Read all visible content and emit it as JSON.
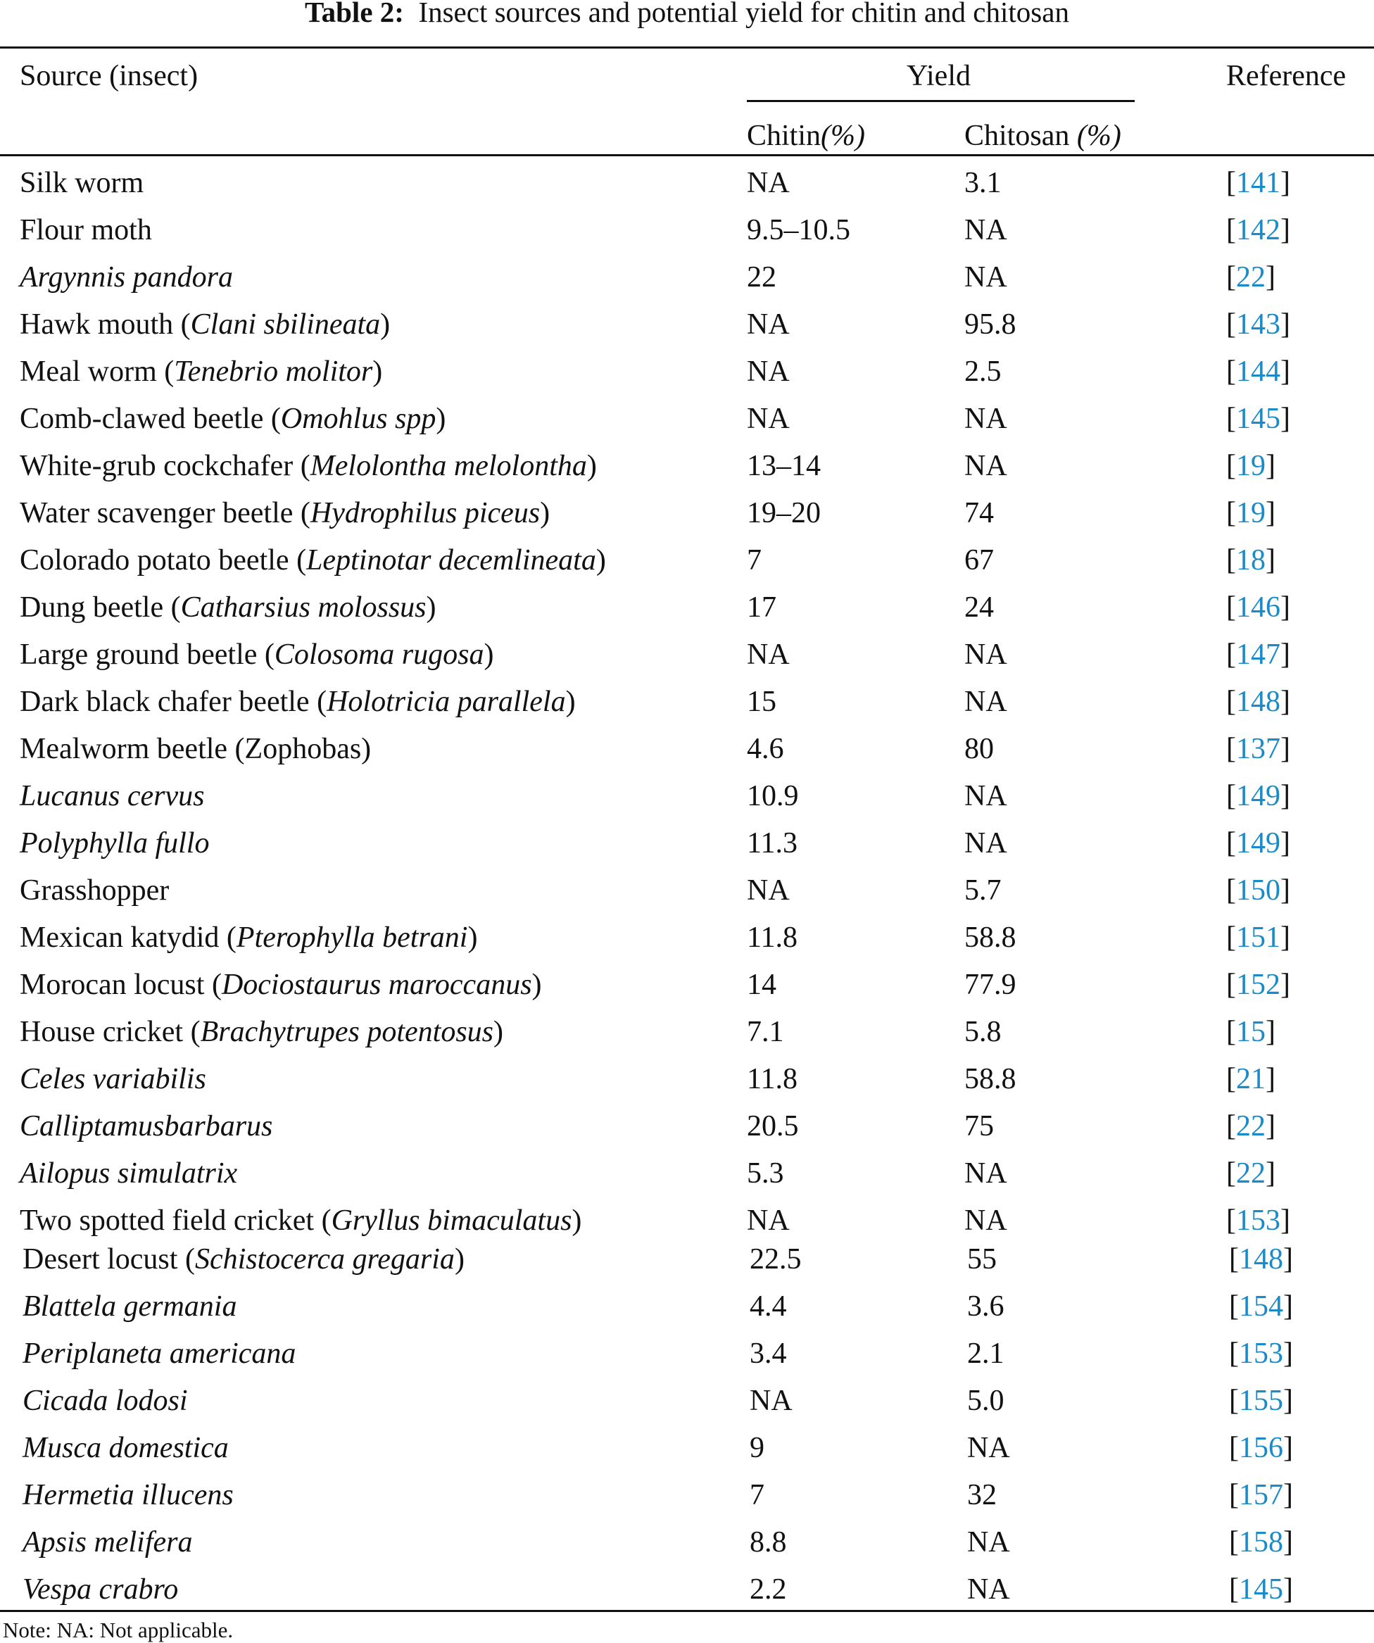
{
  "caption": {
    "label": "Table 2:",
    "text": "Insect sources and potential yield for chitin and chitosan"
  },
  "headers": {
    "source": "Source (insect)",
    "yield": "Yield",
    "chitin": "Chitin",
    "chitosan": "Chitosan ",
    "percent": "(%)",
    "reference": "Reference"
  },
  "link_color": "#1a8ac8",
  "rows": [
    {
      "name": "Silk worm",
      "chitin": "NA",
      "chitosan": "3.1",
      "ref": "141"
    },
    {
      "name": "Flour moth",
      "chitin": "9.5–10.5",
      "chitosan": "NA",
      "ref": "142"
    },
    {
      "species": "Argynnis pandora",
      "chitin": "22",
      "chitosan": "NA",
      "ref": "22"
    },
    {
      "name": "Hawk mouth",
      "species": "Clani sbilineata",
      "chitin": "NA",
      "chitosan": "95.8",
      "ref": "143"
    },
    {
      "name": "Meal worm",
      "species": "Tenebrio molitor",
      "chitin": "NA",
      "chitosan": "2.5",
      "ref": "144"
    },
    {
      "name": "Comb-clawed beetle",
      "species": "Omohlus spp",
      "chitin": "NA",
      "chitosan": "NA",
      "ref": "145"
    },
    {
      "name": "White-grub cockchafer",
      "species": "Melolontha melolontha",
      "chitin": "13–14",
      "chitosan": "NA",
      "ref": "19"
    },
    {
      "name": "Water scavenger beetle",
      "species": "Hydrophilus piceus",
      "chitin": "19–20",
      "chitosan": "74",
      "ref": "19"
    },
    {
      "name": "Colorado potato beetle",
      "species": "Leptinotar decemlineata",
      "chitin": "7",
      "chitosan": "67",
      "ref": "18"
    },
    {
      "name": "Dung beetle",
      "species": "Catharsius molossus",
      "chitin": "17",
      "chitosan": "24",
      "ref": "146"
    },
    {
      "name": "Large ground beetle",
      "species": "Colosoma rugosa",
      "chitin": "NA",
      "chitosan": "NA",
      "ref": "147"
    },
    {
      "name": "Dark black chafer beetle",
      "species": "Holotricia parallela",
      "chitin": "15",
      "chitosan": "NA",
      "ref": "148"
    },
    {
      "name": "Mealworm beetle (Zophobas)",
      "chitin": "4.6",
      "chitosan": "80",
      "ref": "137"
    },
    {
      "species": "Lucanus cervus",
      "chitin": "10.9",
      "chitosan": "NA",
      "ref": "149"
    },
    {
      "species": "Polyphylla fullo",
      "chitin": "11.3",
      "chitosan": "NA",
      "ref": "149"
    },
    {
      "name": "Grasshopper",
      "chitin": "NA",
      "chitosan": "5.7",
      "ref": "150"
    },
    {
      "name": "Mexican katydid",
      "species": "Pterophylla betrani",
      "chitin": "11.8",
      "chitosan": "58.8",
      "ref": "151"
    },
    {
      "name": "Morocan locust",
      "species": "Dociostaurus maroccanus",
      "chitin": "14",
      "chitosan": "77.9",
      "ref": "152"
    },
    {
      "name": "House cricket",
      "species": "Brachytrupes potentosus",
      "chitin": "7.1",
      "chitosan": "5.8",
      "ref": "15"
    },
    {
      "species": "Celes variabilis",
      "chitin": "11.8",
      "chitosan": "58.8",
      "ref": "21"
    },
    {
      "species": "Calliptamusbarbarus",
      "chitin": "20.5",
      "chitosan": "75",
      "ref": "22"
    },
    {
      "species": "Ailopus simulatrix",
      "chitin": "5.3",
      "chitosan": "NA",
      "ref": "22"
    },
    {
      "name": "Two spotted field cricket",
      "species": "Gryllus bimaculatus",
      "chitin": "NA",
      "chitosan": "NA",
      "ref": "153"
    },
    {
      "name": "Desert locust",
      "species": "Schistocerca gregaria",
      "chitin": "22.5",
      "chitosan": "55",
      "ref": "148"
    },
    {
      "species": "Blattela germania",
      "chitin": "4.4",
      "chitosan": "3.6",
      "ref": "154"
    },
    {
      "species": "Periplaneta americana",
      "chitin": "3.4",
      "chitosan": "2.1",
      "ref": "153"
    },
    {
      "species": "Cicada lodosi",
      "chitin": "NA",
      "chitosan": "5.0",
      "ref": "155"
    },
    {
      "species": "Musca domestica",
      "chitin": "9",
      "chitosan": "NA",
      "ref": "156"
    },
    {
      "species": "Hermetia illucens",
      "chitin": "7",
      "chitosan": "32",
      "ref": "157"
    },
    {
      "species": "Apsis melifera",
      "chitin": "8.8",
      "chitosan": "NA",
      "ref": "158"
    },
    {
      "species": "Vespa crabro",
      "chitin": "2.2",
      "chitosan": "NA",
      "ref": "145"
    }
  ],
  "note": "Note: NA: Not applicable."
}
